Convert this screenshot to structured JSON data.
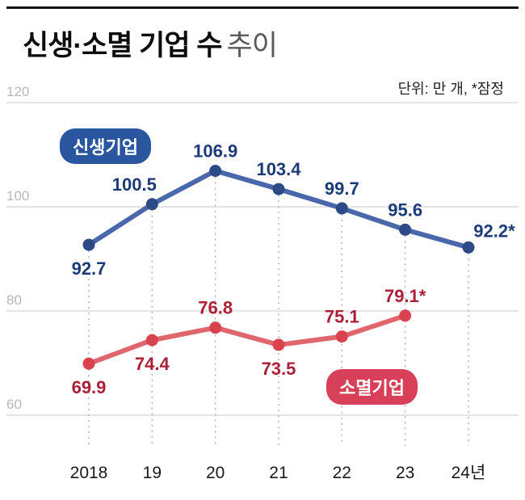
{
  "header": {
    "title_main": "신생·소멸 기업 수",
    "title_sub": "추이",
    "unit_note": "단위: 만 개, *잠정"
  },
  "chart_data": {
    "type": "line",
    "title": "신생·소멸 기업 수 추이",
    "x_labels": [
      "2018",
      "19",
      "20",
      "21",
      "22",
      "23",
      "24년"
    ],
    "y_ticks": [
      120,
      100,
      80,
      60
    ],
    "ylim": [
      55,
      125
    ],
    "grid": true,
    "colors": {
      "grid_line": "#dcdcdc",
      "y_tick_label": "#b8b8b8",
      "x_tick_label": "#1a1a1a",
      "dotted_guide": "#b0b0b0",
      "top_rule": "#111111"
    },
    "series": [
      {
        "name": "신생기업",
        "color": "#4a67ac",
        "dot_color": "#2c4b86",
        "label_color": "#1d3b79",
        "badge_bg": "#2a56a0",
        "points": [
          {
            "x": 0,
            "value": 92.7,
            "label": "92.7",
            "label_pos": "below"
          },
          {
            "x": 1,
            "value": 100.5,
            "label": "100.5",
            "label_pos": "above-left"
          },
          {
            "x": 2,
            "value": 106.9,
            "label": "106.9",
            "label_pos": "above"
          },
          {
            "x": 3,
            "value": 103.4,
            "label": "103.4",
            "label_pos": "above"
          },
          {
            "x": 4,
            "value": 99.7,
            "label": "99.7",
            "label_pos": "above"
          },
          {
            "x": 5,
            "value": 95.6,
            "label": "95.6",
            "label_pos": "above"
          },
          {
            "x": 6,
            "value": 92.2,
            "label": "92.2*",
            "label_pos": "above-right"
          }
        ]
      },
      {
        "name": "소멸기업",
        "color": "#e0666e",
        "dot_color": "#d8434f",
        "label_color": "#ac1f37",
        "badge_bg": "#d8405a",
        "points": [
          {
            "x": 0,
            "value": 69.9,
            "label": "69.9",
            "label_pos": "below"
          },
          {
            "x": 1,
            "value": 74.4,
            "label": "74.4",
            "label_pos": "below"
          },
          {
            "x": 2,
            "value": 76.8,
            "label": "76.8",
            "label_pos": "above"
          },
          {
            "x": 3,
            "value": 73.5,
            "label": "73.5",
            "label_pos": "below"
          },
          {
            "x": 4,
            "value": 75.1,
            "label": "75.1",
            "label_pos": "above"
          },
          {
            "x": 5,
            "value": 79.1,
            "label": "79.1*",
            "label_pos": "above"
          }
        ]
      }
    ]
  }
}
